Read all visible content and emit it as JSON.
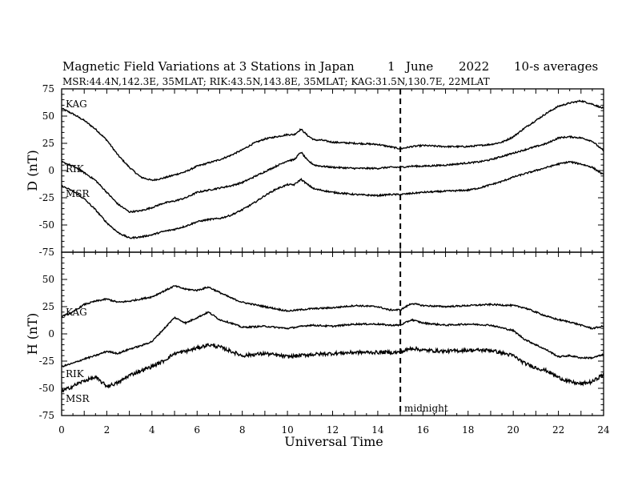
{
  "chart_data": {
    "type": "line",
    "title": "Magnetic Field Variations at 3 Stations in Japan",
    "date_parts": [
      "1",
      "June",
      "2022"
    ],
    "averaging": "10-s averages",
    "subtitle": "MSR:44.4N,142.3E, 35MLAT;  RIK:43.5N,143.8E, 35MLAT;  KAG:31.5N,130.7E, 22MLAT",
    "xlabel": "Universal Time",
    "xlim": [
      0,
      24
    ],
    "xticks": [
      0,
      2,
      4,
      6,
      8,
      10,
      12,
      14,
      16,
      18,
      20,
      22,
      24
    ],
    "midnight_marker": {
      "x": 15,
      "label": "midnight"
    },
    "panels": [
      {
        "ylabel": "D (nT)",
        "ylim": [
          -75,
          75
        ],
        "yticks": [
          -75,
          -50,
          -25,
          0,
          25,
          50,
          75
        ],
        "series": [
          {
            "name": "KAG",
            "x": [
              0,
              0.5,
              1,
              1.5,
              2,
              2.5,
              3,
              3.5,
              4,
              4.5,
              5,
              5.5,
              6,
              6.5,
              7,
              7.5,
              8,
              8.5,
              9,
              9.5,
              10,
              10.3,
              10.6,
              10.9,
              11.2,
              11.5,
              12,
              13,
              14,
              14.5,
              15,
              15.5,
              16,
              17,
              18,
              18.5,
              19,
              19.5,
              20,
              20.5,
              21,
              21.5,
              22,
              22.5,
              23,
              23.5,
              24
            ],
            "values": [
              57,
              52,
              46,
              38,
              28,
              14,
              3,
              -6,
              -9,
              -7,
              -4,
              -1,
              4,
              7,
              10,
              14,
              19,
              25,
              29,
              31,
              33,
              33,
              38,
              32,
              28,
              28,
              26,
              25,
              24,
              22,
              20,
              22,
              23,
              22,
              22,
              23,
              24,
              26,
              31,
              39,
              46,
              53,
              59,
              62,
              64,
              61,
              57
            ]
          },
          {
            "name": "RIK",
            "x": [
              0,
              0.5,
              1,
              1.5,
              2,
              2.5,
              3,
              3.5,
              4,
              4.5,
              5,
              5.5,
              6,
              6.5,
              7,
              7.5,
              8,
              8.5,
              9,
              9.5,
              10,
              10.3,
              10.6,
              10.9,
              11.2,
              11.5,
              12,
              13,
              14,
              14.5,
              15,
              15.5,
              16,
              17,
              18,
              18.5,
              19,
              19.5,
              20,
              20.5,
              21,
              21.5,
              22,
              22.5,
              23,
              23.5,
              24
            ],
            "values": [
              8,
              4,
              -2,
              -9,
              -20,
              -31,
              -38,
              -37,
              -34,
              -30,
              -28,
              -25,
              -20,
              -18,
              -16,
              -14,
              -11,
              -6,
              -1,
              4,
              9,
              10,
              17,
              9,
              5,
              4,
              3,
              2,
              2,
              3,
              3,
              4,
              4,
              5,
              7,
              8,
              10,
              13,
              16,
              19,
              22,
              25,
              30,
              31,
              30,
              27,
              18
            ]
          },
          {
            "name": "MSR",
            "x": [
              0,
              0.5,
              1,
              1.5,
              2,
              2.5,
              3,
              3.5,
              4,
              4.5,
              5,
              5.5,
              6,
              6.5,
              7,
              7.5,
              8,
              8.5,
              9,
              9.5,
              10,
              10.3,
              10.6,
              10.9,
              11.2,
              11.5,
              12,
              13,
              14,
              14.5,
              15,
              15.5,
              16,
              17,
              18,
              18.5,
              19,
              19.5,
              20,
              20.5,
              21,
              21.5,
              22,
              22.5,
              23,
              23.5,
              24
            ],
            "values": [
              -14,
              -19,
              -26,
              -36,
              -48,
              -57,
              -62,
              -61,
              -59,
              -56,
              -54,
              -51,
              -47,
              -45,
              -44,
              -41,
              -36,
              -30,
              -23,
              -17,
              -13,
              -13,
              -8,
              -13,
              -17,
              -18,
              -20,
              -22,
              -23,
              -22,
              -22,
              -21,
              -20,
              -19,
              -18,
              -16,
              -13,
              -10,
              -6,
              -3,
              0,
              3,
              6,
              8,
              6,
              3,
              -4
            ]
          }
        ]
      },
      {
        "ylabel": "H (nT)",
        "ylim": [
          -75,
          75
        ],
        "yticks": [
          -75,
          -50,
          -25,
          0,
          25,
          50
        ],
        "series": [
          {
            "name": "KAG",
            "x": [
              0,
              0.5,
              1,
              1.5,
              2,
              2.5,
              3,
              3.5,
              4,
              4.5,
              5,
              5.5,
              6,
              6.5,
              7,
              7.5,
              8,
              9,
              10,
              11,
              12,
              13,
              14,
              14.5,
              15,
              15.5,
              16,
              17,
              18,
              19,
              20,
              20.5,
              21,
              21.5,
              22,
              22.5,
              23,
              23.5,
              24
            ],
            "values": [
              16,
              20,
              27,
              30,
              32,
              29,
              30,
              32,
              34,
              39,
              44,
              41,
              40,
              43,
              38,
              33,
              29,
              25,
              21,
              23,
              24,
              26,
              25,
              22,
              22,
              28,
              26,
              25,
              26,
              27,
              26,
              24,
              20,
              16,
              13,
              11,
              8,
              5,
              7
            ]
          },
          {
            "name": "RIK",
            "x": [
              0,
              0.5,
              1,
              1.5,
              2,
              2.5,
              3,
              3.5,
              4,
              4.5,
              5,
              5.5,
              6,
              6.5,
              7,
              7.5,
              8,
              9,
              10,
              11,
              12,
              13,
              14,
              14.5,
              15,
              15.5,
              16,
              17,
              18,
              19,
              20,
              20.5,
              21,
              21.5,
              22,
              22.5,
              23,
              23.5,
              24
            ],
            "values": [
              -30,
              -27,
              -23,
              -20,
              -16,
              -18,
              -14,
              -11,
              -7,
              4,
              15,
              10,
              15,
              20,
              13,
              10,
              6,
              7,
              5,
              8,
              7,
              9,
              9,
              8,
              8,
              13,
              10,
              8,
              9,
              8,
              3,
              -5,
              -10,
              -15,
              -21,
              -20,
              -22,
              -22,
              -19
            ]
          },
          {
            "name": "MSR",
            "x": [
              0,
              0.5,
              1,
              1.5,
              2,
              2.5,
              3,
              3.5,
              4,
              4.5,
              5,
              5.5,
              6,
              6.5,
              7,
              7.5,
              8,
              9,
              10,
              11,
              12,
              13,
              14,
              14.5,
              15,
              15.5,
              16,
              17,
              18,
              19,
              20,
              20.5,
              21,
              21.5,
              22,
              22.5,
              23,
              23.5,
              24
            ],
            "values": [
              -53,
              -48,
              -43,
              -40,
              -48,
              -45,
              -38,
              -34,
              -30,
              -25,
              -18,
              -16,
              -13,
              -10,
              -12,
              -16,
              -20,
              -18,
              -21,
              -19,
              -18,
              -17,
              -17,
              -17,
              -17,
              -13,
              -15,
              -16,
              -15,
              -15,
              -20,
              -27,
              -31,
              -34,
              -40,
              -44,
              -46,
              -44,
              -37
            ]
          }
        ]
      }
    ]
  }
}
